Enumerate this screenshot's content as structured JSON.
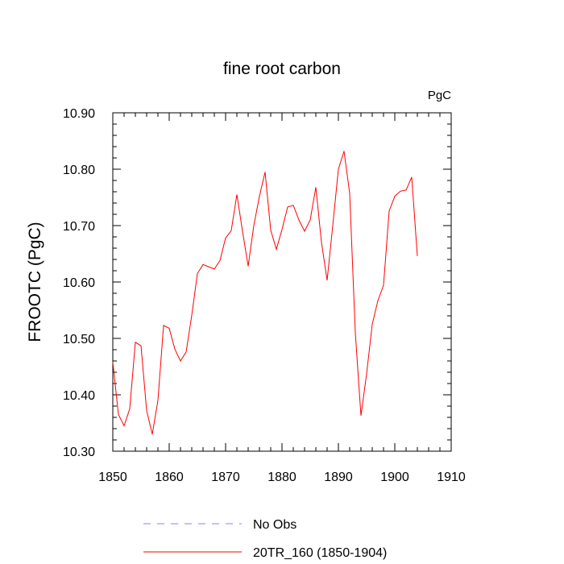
{
  "chart_data": {
    "type": "line",
    "title": "fine root carbon",
    "units_label": "PgC",
    "xlabel": "",
    "ylabel": "FROOTC  (PgC)",
    "xlim": [
      1850,
      1910
    ],
    "ylim": [
      10.3,
      10.9
    ],
    "x_ticks": [
      "1850",
      "1860",
      "1870",
      "1880",
      "1890",
      "1900",
      "1910"
    ],
    "y_ticks": [
      "10.30",
      "10.40",
      "10.50",
      "10.60",
      "10.70",
      "10.80",
      "10.90"
    ],
    "grid": false,
    "legend": [
      {
        "label": "No Obs",
        "color": "#8080ff",
        "dash": true
      },
      {
        "label": "20TR_160 (1850-1904)",
        "color": "#ff0000",
        "dash": false
      }
    ],
    "series": [
      {
        "name": "20TR_160 (1850-1904)",
        "color": "#ff0000",
        "x": [
          1850,
          1851,
          1852,
          1853,
          1854,
          1855,
          1856,
          1857,
          1858,
          1859,
          1860,
          1861,
          1862,
          1863,
          1864,
          1865,
          1866,
          1867,
          1868,
          1869,
          1870,
          1871,
          1872,
          1873,
          1874,
          1875,
          1876,
          1877,
          1878,
          1879,
          1880,
          1881,
          1882,
          1883,
          1884,
          1885,
          1886,
          1887,
          1888,
          1889,
          1890,
          1891,
          1892,
          1893,
          1894,
          1895,
          1896,
          1897,
          1898,
          1899,
          1900,
          1901,
          1902,
          1903,
          1904
        ],
        "values": [
          10.458,
          10.365,
          10.345,
          10.375,
          10.493,
          10.487,
          10.372,
          10.33,
          10.39,
          10.523,
          10.518,
          10.481,
          10.46,
          10.476,
          10.541,
          10.615,
          10.631,
          10.627,
          10.623,
          10.638,
          10.678,
          10.691,
          10.755,
          10.69,
          10.628,
          10.7,
          10.752,
          10.795,
          10.692,
          10.658,
          10.693,
          10.733,
          10.736,
          10.71,
          10.69,
          10.71,
          10.768,
          10.67,
          10.603,
          10.7,
          10.8,
          10.832,
          10.757,
          10.51,
          10.363,
          10.437,
          10.525,
          10.567,
          10.594,
          10.726,
          10.752,
          10.761,
          10.763,
          10.786,
          10.646
        ]
      }
    ]
  }
}
